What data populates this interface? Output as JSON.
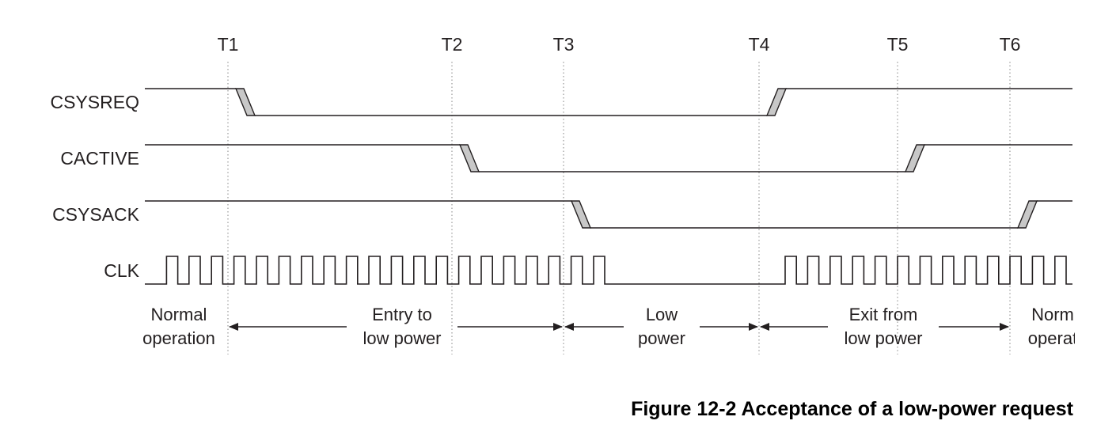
{
  "time_markers": [
    {
      "id": "T1",
      "label": "T1"
    },
    {
      "id": "T2",
      "label": "T2"
    },
    {
      "id": "T3",
      "label": "T3"
    },
    {
      "id": "T4",
      "label": "T4"
    },
    {
      "id": "T5",
      "label": "T5"
    },
    {
      "id": "T6",
      "label": "T6"
    }
  ],
  "signals": [
    {
      "name": "CSYSREQ",
      "label": "CSYSREQ",
      "initial": "high",
      "transitions": [
        {
          "at": "T1",
          "to": "low"
        },
        {
          "at": "T4",
          "to": "high"
        }
      ]
    },
    {
      "name": "CACTIVE",
      "label": "CACTIVE",
      "initial": "high",
      "transitions": [
        {
          "at": "T2",
          "to": "low"
        },
        {
          "at": "T5",
          "to": "high"
        }
      ]
    },
    {
      "name": "CSYSACK",
      "label": "CSYSACK",
      "initial": "high",
      "transitions": [
        {
          "at": "T3",
          "to": "low"
        },
        {
          "at": "T6",
          "to": "high"
        }
      ]
    },
    {
      "name": "CLK",
      "label": "CLK",
      "clock": true,
      "stopped_between": [
        "T3",
        "T4"
      ]
    }
  ],
  "phases": [
    {
      "lines": [
        "Normal",
        "operation"
      ],
      "from": "",
      "to": "T1"
    },
    {
      "lines": [
        "Entry to",
        "low power"
      ],
      "from": "T1",
      "to": "T3"
    },
    {
      "lines": [
        "Low",
        "power"
      ],
      "from": "T3",
      "to": "T4"
    },
    {
      "lines": [
        "Exit from",
        "low power"
      ],
      "from": "T4",
      "to": "T6"
    },
    {
      "lines": [
        "Norm",
        "operat"
      ],
      "from": "T6",
      "to": ""
    }
  ],
  "caption": "Figure 12-2 Acceptance of a low-power request",
  "colors": {
    "line": "#231f20",
    "transition_fill": "#c8c8c8",
    "guide": "#a0a0a0"
  }
}
